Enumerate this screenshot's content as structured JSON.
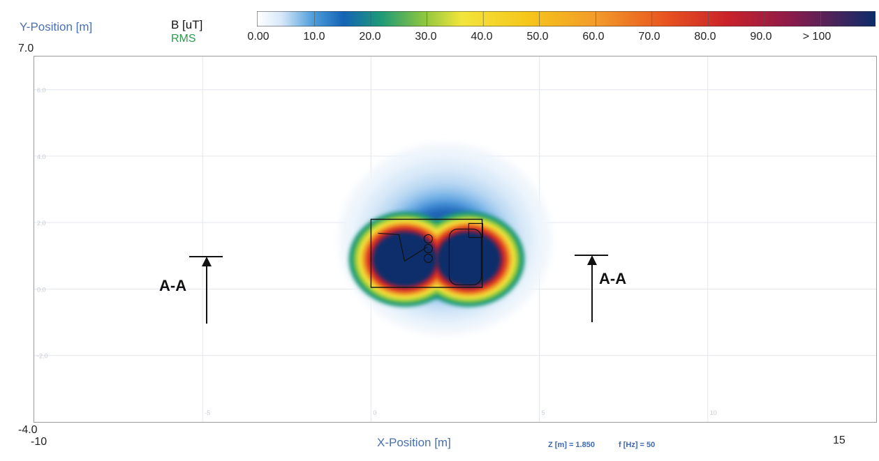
{
  "y_axis": {
    "label": "Y-Position [m]",
    "top": "7.0",
    "bottom": "-4.0"
  },
  "x_axis": {
    "label": "X-Position [m]",
    "left": "-10",
    "right": "15"
  },
  "quantity": {
    "name": "B [uT]",
    "type": "RMS"
  },
  "params": {
    "z": "Z [m] = 1.850",
    "f": "f [Hz] = 50"
  },
  "section_marker": {
    "left": "A-A",
    "right": "A-A"
  },
  "colorbar": {
    "ticks": [
      "0.00",
      "10.0",
      "20.0",
      "30.0",
      "40.0",
      "50.0",
      "60.0",
      "70.0",
      "80.0",
      "90.0",
      "> 100"
    ],
    "colors": [
      "#ffffff",
      "#cfe3f6",
      "#5aa6e0",
      "#1565b8",
      "#1a9a7a",
      "#8cc63f",
      "#f2e43a",
      "#f5c518",
      "#f08a24",
      "#e0401f",
      "#b01c3a",
      "#0b2d6b"
    ]
  },
  "chart_data": {
    "type": "heatmap",
    "title": "",
    "xlabel": "X-Position [m]",
    "ylabel": "Y-Position [m]",
    "xlim": [
      -10,
      15
    ],
    "ylim": [
      -4,
      7
    ],
    "colorbar_label": "B [uT] RMS",
    "colorbar_range": [
      0,
      100
    ],
    "grid": true,
    "x_gridlines": [
      -5,
      0,
      5,
      10
    ],
    "y_gridlines": [
      6,
      4,
      2,
      0,
      -2
    ],
    "inner_tick_labels": {
      "y": [
        "6.0",
        "4.0",
        "2.0",
        "0.0",
        "-2.0"
      ],
      "x": [
        "-5",
        "0",
        "5",
        "10"
      ]
    },
    "field_sources": [
      {
        "x": 1.0,
        "y": 0.9,
        "peak_uT": 100
      },
      {
        "x": 2.9,
        "y": 0.9,
        "peak_uT": 100
      }
    ],
    "equipment_outline": {
      "x": [
        0,
        3.3
      ],
      "y": [
        0.05,
        2.1
      ]
    },
    "section_line": {
      "label": "A-A",
      "x": [
        -4.9,
        6.6
      ],
      "y_range": [
        -0.2,
        1.6
      ]
    }
  }
}
